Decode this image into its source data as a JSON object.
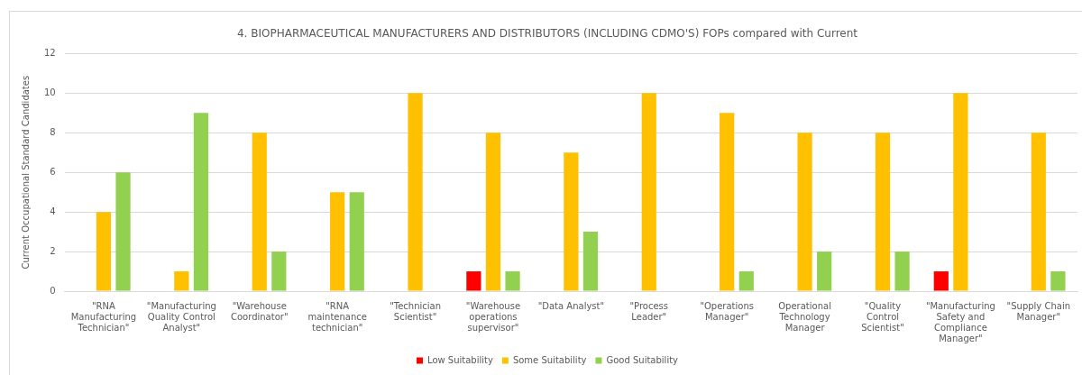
{
  "chart_data": {
    "type": "bar",
    "title": "4. BIOPHARMACEUTICAL MANUFACTURERS AND DISTRIBUTORS (INCLUDING CDMO'S) FOPs compared with Current",
    "ylabel": "Current Occupational Standard Candidates",
    "categories": [
      "\"RNA Manufacturing Technician\"",
      "\"Manufacturing Quality Control Analyst\"",
      "\"Warehouse Coordinator\"",
      "\"RNA maintenance technician\"",
      "\"Technician Scientist\"",
      "\"Warehouse operations supervisor\"",
      "\"Data Analyst\"",
      "\"Process Leader\"",
      "\"Operations Manager\"",
      "Operational Technology Manager",
      "\"Quality Control Scientist\"",
      "\"Manufacturing Safety and Compliance Manager\"",
      "\"Supply Chain Manager\""
    ],
    "series": [
      {
        "name": "Low Suitability",
        "color": "#ff0000",
        "values": [
          null,
          null,
          null,
          null,
          null,
          1,
          null,
          null,
          null,
          null,
          null,
          1,
          null
        ]
      },
      {
        "name": "Some Suitability",
        "color": "#ffc000",
        "values": [
          4,
          1,
          8,
          5,
          10,
          8,
          7,
          10,
          9,
          8,
          8,
          10,
          8
        ]
      },
      {
        "name": "Good Suitability",
        "color": "#92d050",
        "values": [
          6,
          9,
          2,
          5,
          null,
          1,
          3,
          null,
          1,
          2,
          2,
          null,
          1
        ]
      }
    ],
    "ylim": [
      0,
      12
    ],
    "yticks": [
      0,
      2,
      4,
      6,
      8,
      10,
      12
    ],
    "grid": "y",
    "legend": "bottom"
  }
}
